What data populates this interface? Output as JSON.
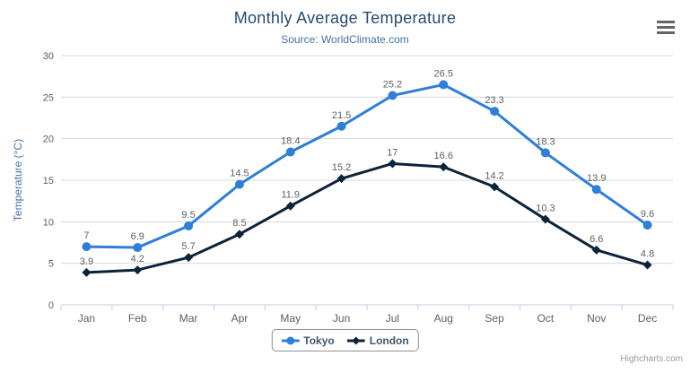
{
  "title": "Monthly Average Temperature",
  "subtitle": "Source: WorldClimate.com",
  "credits": "Highcharts.com",
  "chart_data": {
    "type": "line",
    "title": "Monthly Average Temperature",
    "subtitle": "Source: WorldClimate.com",
    "categories": [
      "Jan",
      "Feb",
      "Mar",
      "Apr",
      "May",
      "Jun",
      "Jul",
      "Aug",
      "Sep",
      "Oct",
      "Nov",
      "Dec"
    ],
    "series": [
      {
        "name": "Tokyo",
        "marker": "circle",
        "color": "#2f7ed8",
        "values": [
          7,
          6.9,
          9.5,
          14.5,
          18.4,
          21.5,
          25.2,
          26.5,
          23.3,
          18.3,
          13.9,
          9.6
        ]
      },
      {
        "name": "London",
        "marker": "diamond",
        "color": "#0d233a",
        "values": [
          3.9,
          4.2,
          5.7,
          8.5,
          11.9,
          15.2,
          17,
          16.6,
          14.2,
          10.3,
          6.6,
          4.8
        ]
      }
    ],
    "xlabel": "",
    "ylabel": "Temperature (°C)",
    "ylim": [
      0,
      30
    ],
    "ytick_interval": 5,
    "yticks": [
      0,
      5,
      10,
      15,
      20,
      25,
      30
    ],
    "grid": true,
    "data_labels": true,
    "legend_position": "bottom",
    "colors": {
      "grid": "#D8D8D8",
      "axis_line": "#C0D0E0",
      "axis_label": "#606060",
      "data_label": "#606060",
      "title": "#274b6d",
      "subtitle": "#4572A7",
      "axis_title": "#4572A7",
      "legend_text": "#3E576F",
      "legend_border": "#909090",
      "credits": "#999999"
    }
  }
}
